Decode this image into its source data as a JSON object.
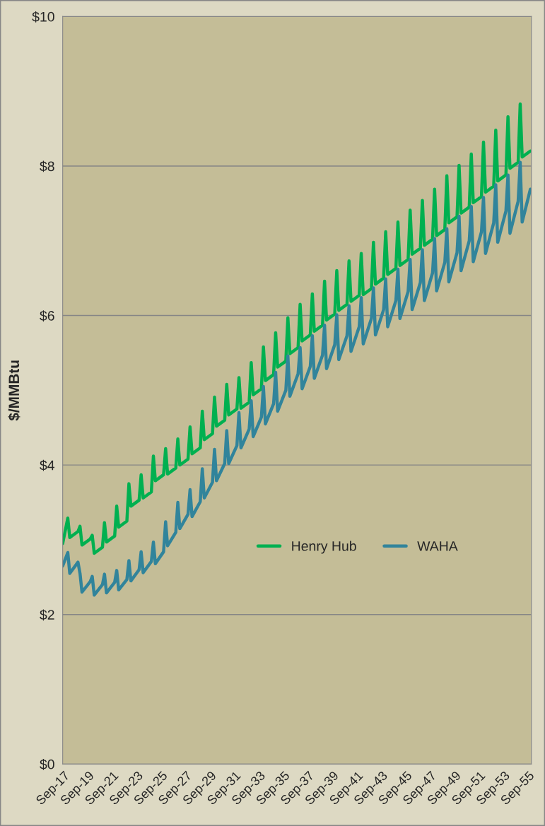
{
  "chart_data": {
    "type": "line",
    "ylabel": "$/MMBtu",
    "grid": "y",
    "legend": "bottom",
    "xlim": [
      "2017-08",
      "2055-12"
    ],
    "xticks": [
      {
        "value": "2017-09",
        "label": "Sep-17"
      },
      {
        "value": "2019-09",
        "label": "Sep-19"
      },
      {
        "value": "2021-09",
        "label": "Sep-21"
      },
      {
        "value": "2023-09",
        "label": "Sep-23"
      },
      {
        "value": "2025-09",
        "label": "Sep-25"
      },
      {
        "value": "2027-09",
        "label": "Sep-27"
      },
      {
        "value": "2029-09",
        "label": "Sep-29"
      },
      {
        "value": "2031-09",
        "label": "Sep-31"
      },
      {
        "value": "2033-09",
        "label": "Sep-33"
      },
      {
        "value": "2035-09",
        "label": "Sep-35"
      },
      {
        "value": "2037-09",
        "label": "Sep-37"
      },
      {
        "value": "2039-09",
        "label": "Sep-39"
      },
      {
        "value": "2041-09",
        "label": "Sep-41"
      },
      {
        "value": "2043-09",
        "label": "Sep-43"
      },
      {
        "value": "2045-09",
        "label": "Sep-45"
      },
      {
        "value": "2047-09",
        "label": "Sep-47"
      },
      {
        "value": "2049-09",
        "label": "Sep-49"
      },
      {
        "value": "2051-09",
        "label": "Sep-51"
      },
      {
        "value": "2053-09",
        "label": "Sep-53"
      },
      {
        "value": "2055-09",
        "label": "Sep-55"
      }
    ],
    "ylim": [
      0,
      10
    ],
    "yticks": [
      {
        "value": 0,
        "label": "$0"
      },
      {
        "value": 2,
        "label": "$2"
      },
      {
        "value": 4,
        "label": "$4"
      },
      {
        "value": 6,
        "label": "$6"
      },
      {
        "value": 8,
        "label": "$8"
      },
      {
        "value": 10,
        "label": "$10"
      }
    ],
    "x": [
      "2017-08",
      "2018-01",
      "2018-03",
      "2018-11",
      "2019-01",
      "2019-03",
      "2019-11",
      "2020-01",
      "2020-03",
      "2020-11",
      "2021-01",
      "2021-03",
      "2021-11",
      "2022-01",
      "2022-03",
      "2022-11",
      "2023-01",
      "2023-03",
      "2023-11",
      "2024-01",
      "2024-03",
      "2024-11",
      "2025-01",
      "2025-03",
      "2025-11",
      "2026-01",
      "2026-03",
      "2026-11",
      "2027-01",
      "2027-03",
      "2027-11",
      "2028-01",
      "2028-03",
      "2028-11",
      "2029-01",
      "2029-03",
      "2029-11",
      "2030-01",
      "2030-03",
      "2030-11",
      "2031-01",
      "2031-03",
      "2031-11",
      "2032-01",
      "2032-03",
      "2032-11",
      "2033-01",
      "2033-03",
      "2033-11",
      "2034-01",
      "2034-03",
      "2034-11",
      "2035-01",
      "2035-03",
      "2035-11",
      "2036-01",
      "2036-03",
      "2036-11",
      "2037-01",
      "2037-03",
      "2037-11",
      "2038-01",
      "2038-03",
      "2038-11",
      "2039-01",
      "2039-03",
      "2039-11",
      "2040-01",
      "2040-03",
      "2040-11",
      "2041-01",
      "2041-03",
      "2041-11",
      "2042-01",
      "2042-03",
      "2042-11",
      "2043-01",
      "2043-03",
      "2043-11",
      "2044-01",
      "2044-03",
      "2044-11",
      "2045-01",
      "2045-03",
      "2045-11",
      "2046-01",
      "2046-03",
      "2046-11",
      "2047-01",
      "2047-03",
      "2047-11",
      "2048-01",
      "2048-03",
      "2048-11",
      "2049-01",
      "2049-03",
      "2049-11",
      "2050-01",
      "2050-03",
      "2050-11",
      "2051-01",
      "2051-03",
      "2051-11",
      "2052-01",
      "2052-03",
      "2052-11",
      "2053-01",
      "2053-03",
      "2053-11",
      "2054-01",
      "2054-03",
      "2054-11",
      "2055-01",
      "2055-03",
      "2055-11"
    ],
    "series": [
      {
        "name": "Henry Hub",
        "color": "#00b050",
        "values": [
          2.95,
          3.29,
          3.03,
          3.11,
          3.18,
          2.93,
          3.01,
          3.06,
          2.82,
          2.9,
          3.23,
          2.97,
          3.05,
          3.45,
          3.17,
          3.25,
          3.75,
          3.45,
          3.53,
          3.87,
          3.56,
          3.64,
          4.12,
          3.79,
          3.87,
          4.22,
          3.88,
          3.96,
          4.35,
          4.0,
          4.08,
          4.51,
          4.15,
          4.23,
          4.72,
          4.34,
          4.42,
          4.91,
          4.52,
          4.6,
          5.08,
          4.67,
          4.75,
          5.17,
          4.76,
          4.84,
          5.37,
          4.94,
          5.02,
          5.58,
          5.13,
          5.21,
          5.77,
          5.31,
          5.39,
          5.97,
          5.49,
          5.57,
          6.15,
          5.66,
          5.74,
          6.29,
          5.79,
          5.87,
          6.46,
          5.94,
          6.02,
          6.6,
          6.07,
          6.15,
          6.73,
          6.19,
          6.27,
          6.83,
          6.28,
          6.36,
          6.98,
          6.42,
          6.5,
          7.12,
          6.55,
          6.63,
          7.25,
          6.67,
          6.75,
          7.41,
          6.82,
          6.9,
          7.54,
          6.94,
          7.02,
          7.69,
          7.07,
          7.15,
          7.87,
          7.24,
          7.32,
          8.01,
          7.37,
          7.45,
          8.16,
          7.51,
          7.59,
          8.32,
          7.65,
          7.73,
          8.48,
          7.8,
          7.88,
          8.66,
          7.97,
          8.05,
          8.83,
          8.12,
          8.2
        ]
      },
      {
        "name": "WAHA",
        "color": "#31849b",
        "values": [
          2.65,
          2.83,
          2.55,
          2.7,
          2.55,
          2.3,
          2.44,
          2.51,
          2.26,
          2.4,
          2.54,
          2.29,
          2.43,
          2.59,
          2.33,
          2.47,
          2.72,
          2.45,
          2.6,
          2.84,
          2.56,
          2.71,
          2.97,
          2.68,
          2.84,
          3.24,
          2.92,
          3.1,
          3.5,
          3.15,
          3.34,
          3.67,
          3.31,
          3.51,
          3.95,
          3.56,
          3.77,
          4.21,
          3.79,
          4.02,
          4.46,
          4.02,
          4.26,
          4.7,
          4.23,
          4.48,
          4.86,
          4.38,
          4.64,
          5.05,
          4.55,
          4.82,
          5.24,
          4.72,
          5.0,
          5.46,
          4.92,
          5.22,
          5.57,
          5.02,
          5.32,
          5.73,
          5.16,
          5.47,
          5.87,
          5.29,
          5.61,
          6.01,
          5.41,
          5.73,
          6.13,
          5.52,
          5.85,
          6.24,
          5.62,
          5.96,
          6.37,
          5.74,
          6.08,
          6.49,
          5.85,
          6.2,
          6.62,
          5.96,
          6.32,
          6.75,
          6.08,
          6.44,
          6.88,
          6.2,
          6.57,
          7.03,
          6.33,
          6.71,
          7.16,
          6.45,
          6.84,
          7.33,
          6.6,
          7.0,
          7.46,
          6.72,
          7.12,
          7.58,
          6.83,
          7.24,
          7.75,
          6.98,
          7.4,
          7.88,
          7.1,
          7.53,
          8.05,
          7.25,
          7.69
        ]
      }
    ]
  }
}
